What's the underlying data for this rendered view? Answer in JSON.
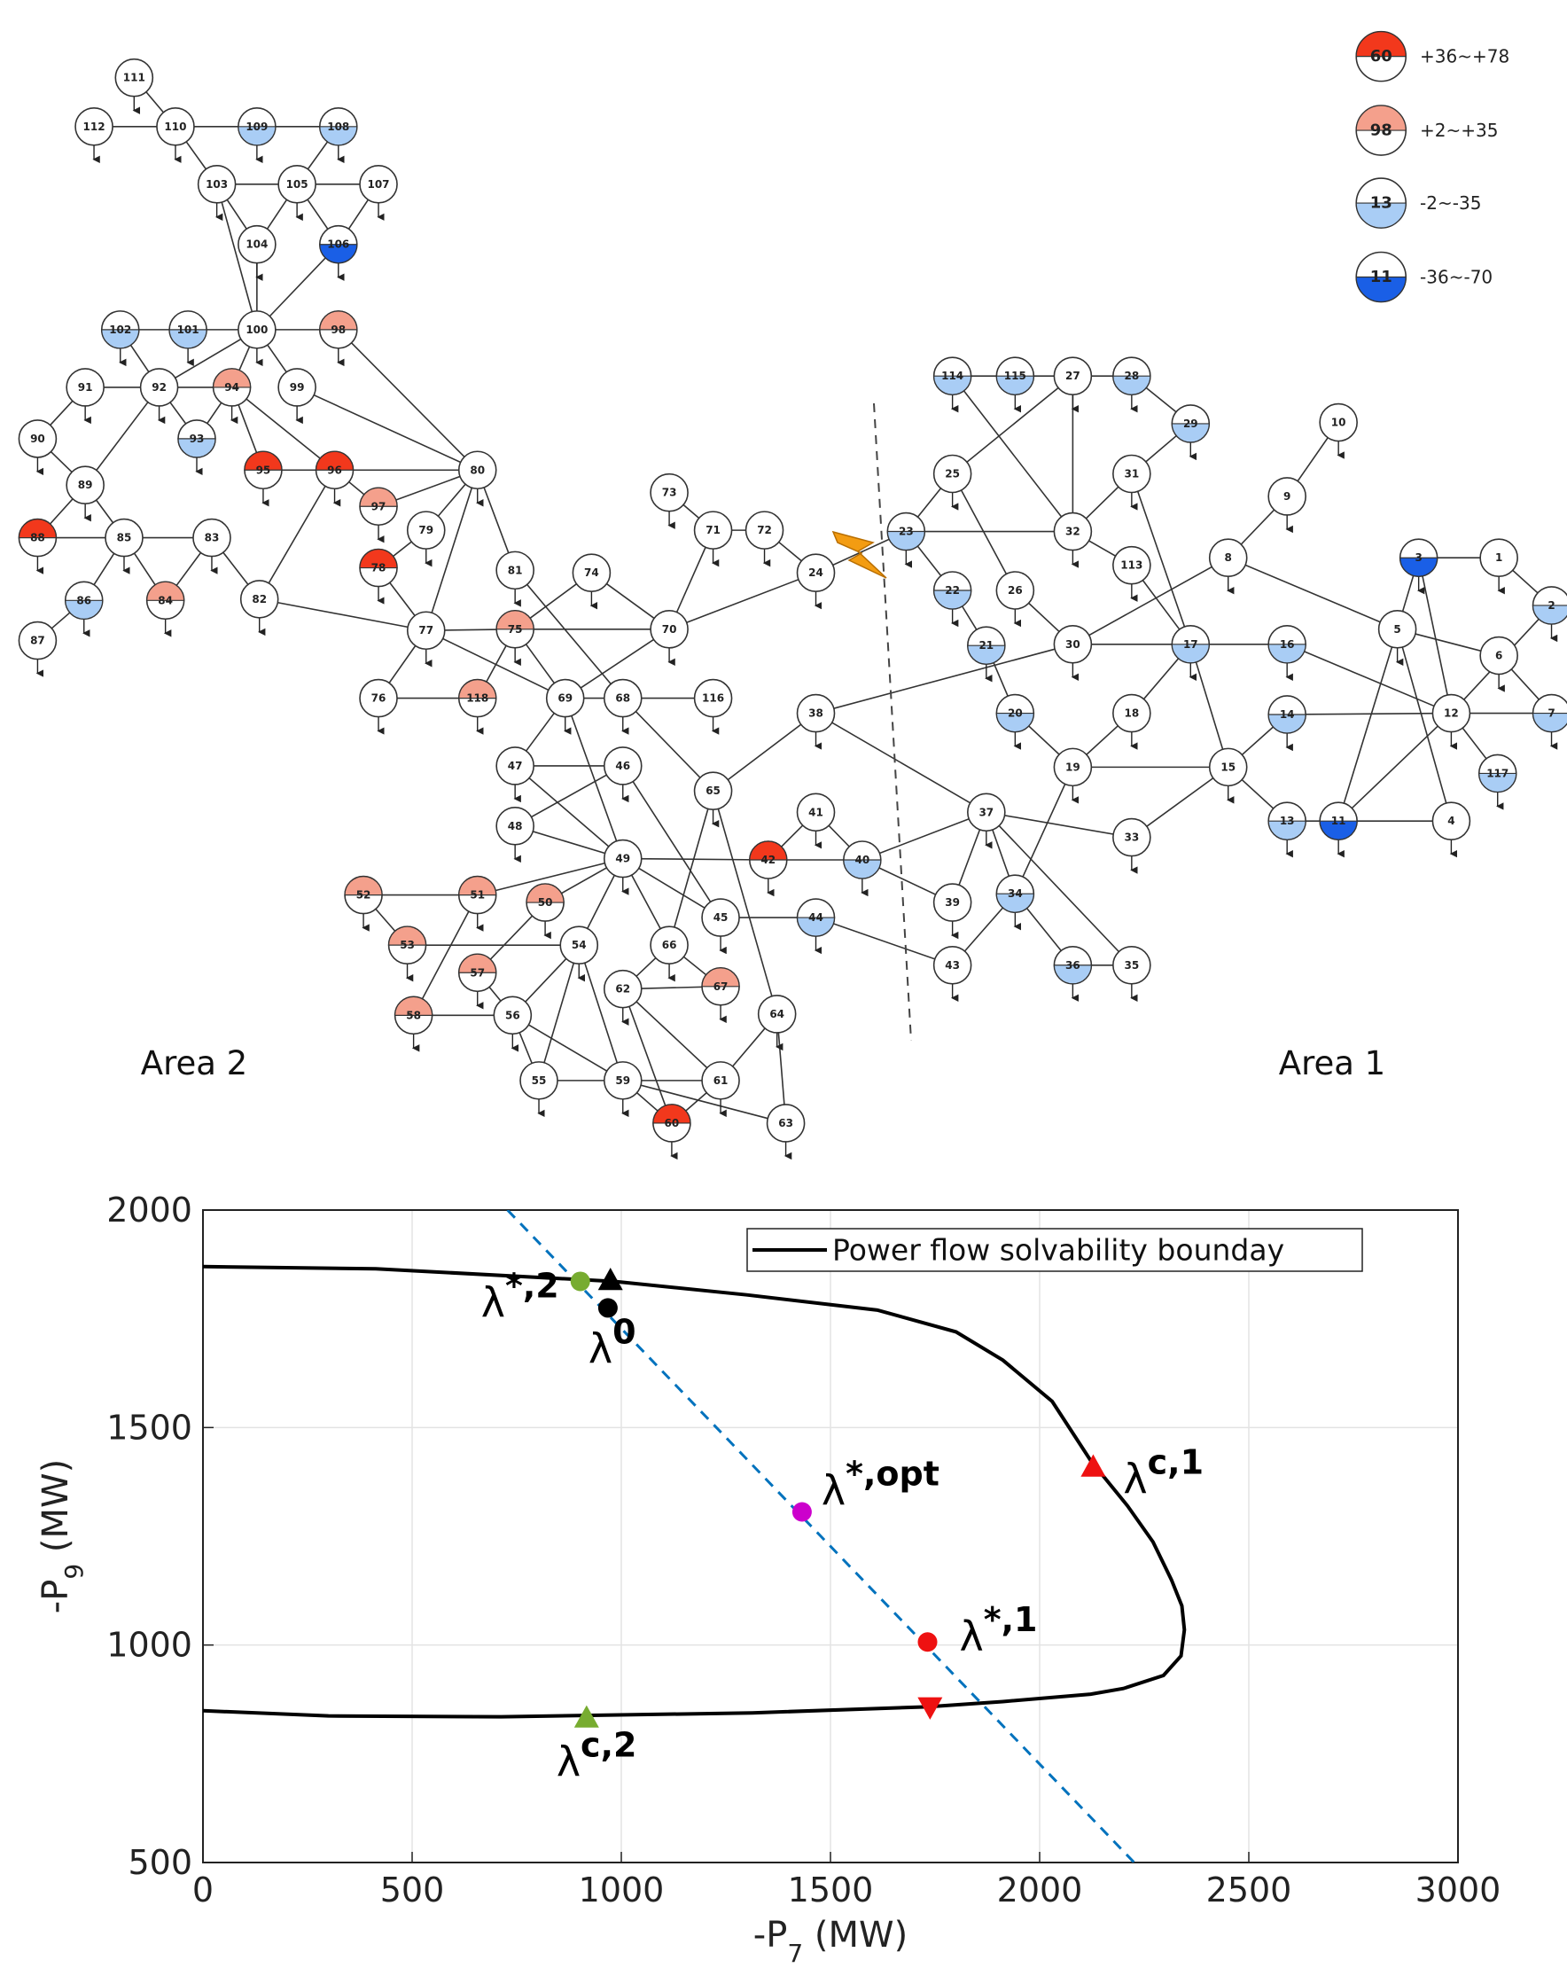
{
  "diagram": {
    "nodes": [
      "1",
      "2",
      "3",
      "4",
      "5",
      "6",
      "7",
      "8",
      "9",
      "10",
      "11",
      "12",
      "13",
      "14",
      "15",
      "16",
      "17",
      "18",
      "19",
      "20",
      "21",
      "22",
      "23",
      "24",
      "25",
      "26",
      "27",
      "28",
      "29",
      "30",
      "31",
      "32",
      "33",
      "34",
      "35",
      "36",
      "37",
      "38",
      "39",
      "40",
      "41",
      "42",
      "43",
      "44",
      "45",
      "46",
      "47",
      "48",
      "49",
      "50",
      "51",
      "52",
      "53",
      "54",
      "55",
      "56",
      "57",
      "58",
      "59",
      "60",
      "61",
      "62",
      "63",
      "64",
      "65",
      "66",
      "67",
      "68",
      "69",
      "70",
      "71",
      "72",
      "73",
      "74",
      "75",
      "76",
      "77",
      "78",
      "79",
      "80",
      "81",
      "82",
      "83",
      "84",
      "85",
      "86",
      "87",
      "88",
      "89",
      "90",
      "91",
      "92",
      "93",
      "94",
      "95",
      "96",
      "97",
      "98",
      "99",
      "100",
      "101",
      "102",
      "103",
      "104",
      "105",
      "106",
      "107",
      "108",
      "109",
      "110",
      "111",
      "112",
      "113",
      "114",
      "115",
      "116",
      "117",
      "118"
    ],
    "legend": [
      {
        "sample": "60",
        "range": "+36~+78"
      },
      {
        "sample": "98",
        "range": "+2~+35"
      },
      {
        "sample": "13",
        "range": "-2~-35"
      },
      {
        "sample": "11",
        "range": "-36~-70"
      }
    ],
    "areas": {
      "left": "Area 2",
      "right": "Area 1"
    }
  },
  "chart_data": {
    "type": "line",
    "x_label": [
      "-P",
      "7",
      " (MW)"
    ],
    "y_label": [
      "-P",
      "9",
      " (MW)"
    ],
    "xlim": [
      0,
      3000
    ],
    "ylim": [
      500,
      2000
    ],
    "xticks": [
      0,
      500,
      1000,
      1500,
      2000,
      2500,
      3000
    ],
    "yticks": [
      500,
      1000,
      1500,
      2000
    ],
    "grid": true,
    "legend": "top-right",
    "series": [
      {
        "name": "Power flow solvability bounday",
        "color": "#000000",
        "x": [
          0,
          413,
          983,
          1300,
          1612,
          1800,
          1912,
          2030,
          2122,
          2210,
          2271,
          2315,
          2340,
          2346,
          2338,
          2296,
          2200,
          2122,
          1912,
          1732,
          1313,
          713,
          300,
          0
        ],
        "values": [
          1870,
          1865,
          1836,
          1805,
          1770,
          1720,
          1655,
          1560,
          1424,
          1320,
          1237,
          1150,
          1090,
          1035,
          975,
          930,
          900,
          887,
          870,
          858,
          844,
          835,
          837,
          849
        ]
      },
      {
        "color": "#0072bd",
        "dashed": true,
        "x": [
          728,
          2226
        ],
        "values": [
          2000,
          500
        ]
      }
    ],
    "points": [
      {
        "x": 902,
        "y": 1836,
        "marker": "circle",
        "color": "#77ac30",
        "label": "λ",
        "sup": "*,2"
      },
      {
        "x": 974,
        "y": 1839,
        "marker": "triangle-up",
        "color": "#000000"
      },
      {
        "x": 968,
        "y": 1775,
        "marker": "circle",
        "color": "#000000",
        "label": "λ",
        "sup": "0"
      },
      {
        "x": 1432,
        "y": 1306,
        "marker": "circle",
        "color": "#cc00cc",
        "label": "λ",
        "sup": "*,opt"
      },
      {
        "x": 1732,
        "y": 1007,
        "marker": "circle",
        "color": "#ee1111",
        "label": "λ",
        "sup": "*,1"
      },
      {
        "x": 2128,
        "y": 1410,
        "marker": "triangle-up",
        "color": "#ee1111",
        "label": "λ",
        "sup": "c,1"
      },
      {
        "x": 1738,
        "y": 857,
        "marker": "triangle-down",
        "color": "#ee1111"
      },
      {
        "x": 917,
        "y": 833,
        "marker": "triangle-up",
        "color": "#77ac30",
        "label": "λ",
        "sup": "c,2"
      }
    ]
  }
}
